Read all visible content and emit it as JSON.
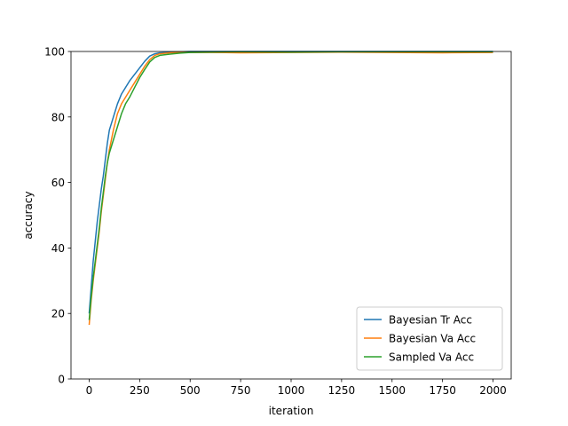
{
  "chart_data": {
    "type": "line",
    "title": "",
    "xlabel": "iteration",
    "ylabel": "accuracy",
    "xlim": [
      -90,
      2090
    ],
    "ylim": [
      0,
      100
    ],
    "xticks": [
      0,
      250,
      500,
      750,
      1000,
      1250,
      1500,
      1750,
      2000
    ],
    "yticks": [
      0,
      20,
      40,
      60,
      80,
      100
    ],
    "grid": false,
    "legend_position": "lower-right",
    "series": [
      {
        "name": "Bayesian Tr Acc",
        "color": "#1f77b4",
        "x": [
          0,
          10,
          20,
          30,
          40,
          50,
          60,
          70,
          80,
          90,
          100,
          120,
          140,
          160,
          180,
          200,
          225,
          250,
          275,
          300,
          325,
          350,
          400,
          450,
          500,
          600,
          750,
          1000,
          1250,
          1500,
          1750,
          2000
        ],
        "y": [
          20,
          28,
          36,
          42,
          48,
          53,
          58,
          62,
          67,
          72,
          76,
          80,
          84,
          87,
          89,
          91,
          93,
          95,
          97,
          98.6,
          99.3,
          99.6,
          99.8,
          99.9,
          100,
          100,
          100,
          100,
          100,
          100,
          100,
          100
        ]
      },
      {
        "name": "Bayesian Va Acc",
        "color": "#ff7f0e",
        "x": [
          0,
          10,
          20,
          30,
          40,
          50,
          60,
          70,
          80,
          90,
          100,
          120,
          140,
          160,
          180,
          200,
          225,
          250,
          275,
          300,
          325,
          350,
          400,
          450,
          500,
          600,
          750,
          1000,
          1250,
          1500,
          1750,
          2000
        ],
        "y": [
          16.5,
          24,
          30,
          35,
          40,
          45,
          51,
          56,
          61,
          66,
          70,
          76,
          81,
          84,
          86,
          88,
          90.5,
          93,
          95.5,
          97.5,
          98.8,
          99.3,
          99.6,
          99.7,
          99.7,
          99.7,
          99.6,
          99.7,
          99.8,
          99.7,
          99.6,
          99.7
        ]
      },
      {
        "name": "Sampled Va Acc",
        "color": "#2ca02c",
        "x": [
          0,
          10,
          20,
          30,
          40,
          50,
          60,
          70,
          80,
          90,
          100,
          120,
          140,
          160,
          180,
          200,
          225,
          250,
          275,
          300,
          325,
          350,
          400,
          450,
          500,
          600,
          750,
          1000,
          1250,
          1500,
          1750,
          2000
        ],
        "y": [
          18,
          25,
          31,
          36,
          41,
          46,
          52,
          57,
          62,
          66,
          69,
          73,
          77,
          81,
          84,
          86,
          89,
          92,
          94.5,
          96.8,
          98.2,
          98.8,
          99.2,
          99.5,
          99.7,
          99.8,
          99.9,
          99.8,
          99.9,
          99.9,
          99.9,
          99.9
        ]
      }
    ]
  }
}
